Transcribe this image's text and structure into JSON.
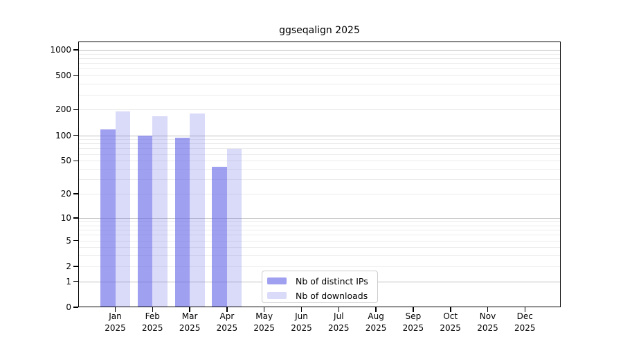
{
  "chart_data": {
    "type": "bar",
    "title": "ggseqalign 2025",
    "categories": [
      "Jan",
      "Feb",
      "Mar",
      "Apr",
      "May",
      "Jun",
      "Jul",
      "Aug",
      "Sep",
      "Oct",
      "Nov",
      "Dec"
    ],
    "year_label": "2025",
    "series": [
      {
        "name": "Nb of distinct IPs",
        "color": "rgba(102,102,230,0.62)",
        "color_on_white": "#a0a0f0",
        "values": [
          118,
          100,
          93,
          42,
          0,
          0,
          0,
          0,
          0,
          0,
          0,
          0
        ]
      },
      {
        "name": "Nb of downloads",
        "color": "rgba(102,102,230,0.24)",
        "color_on_white": "#dadaf9",
        "values": [
          190,
          168,
          179,
          69,
          0,
          0,
          0,
          0,
          0,
          0,
          0,
          0
        ]
      }
    ],
    "xlabel": "",
    "ylabel": "",
    "yscale": "log1p",
    "yticks": [
      0,
      1,
      2,
      5,
      10,
      20,
      50,
      100,
      200,
      500,
      1000
    ],
    "ylim": [
      0,
      1200
    ],
    "grid": true,
    "gridline_minor_color": "#ebebeb",
    "gridline_major_color": "#bdbdbd",
    "legend_position": "lower center"
  }
}
